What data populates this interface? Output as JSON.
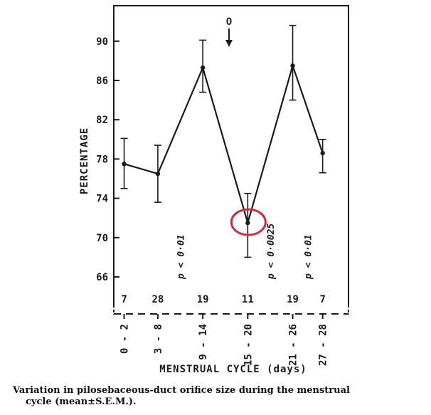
{
  "chart_data": {
    "type": "line",
    "ylabel": "PERCENTAGE",
    "xlabel": "MENSTRUAL CYCLE (days)",
    "caption_line1": "Variation in pilosebaceous-duct orifice size during the menstrual",
    "caption_line2": "cycle (mean±S.E.M.).",
    "ylim": [
      63.5,
      95.5
    ],
    "yticks": [
      66,
      70,
      74,
      78,
      82,
      86,
      90
    ],
    "categories": [
      "0 - 2",
      "3 - 8",
      "9 - 14",
      "15 - 20",
      "21 - 26",
      "27 - 28"
    ],
    "x": [
      1,
      5.5,
      11.5,
      17.5,
      23.5,
      27.5
    ],
    "values": [
      77.5,
      76.5,
      87.3,
      71.5,
      87.5,
      78.6
    ],
    "error_low": [
      75.0,
      73.6,
      84.8,
      68.0,
      84.0,
      76.6
    ],
    "error_high": [
      80.1,
      79.4,
      90.1,
      74.5,
      91.6,
      80.0
    ],
    "n_labels": [
      "7",
      "28",
      "19",
      "11",
      "19",
      "7"
    ],
    "ovulation_label": "O",
    "p_values": [
      {
        "x": 8.5,
        "text": "p < 0·01"
      },
      {
        "x": 20.5,
        "text": "p < 0·0025"
      },
      {
        "x": 25.5,
        "text": "p < 0·01"
      }
    ],
    "highlight_point_index": 3,
    "highlight_color": "#d42a3c",
    "grid": false
  }
}
